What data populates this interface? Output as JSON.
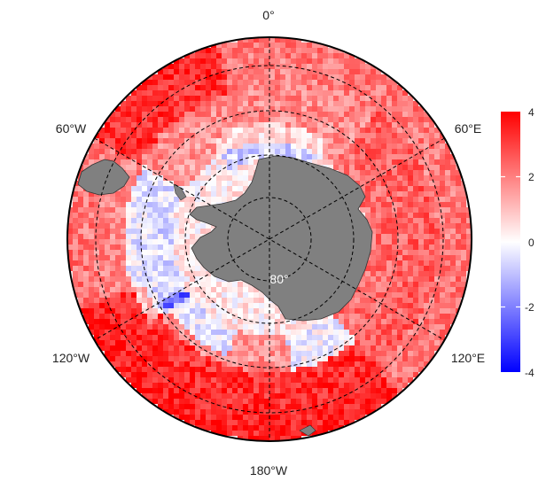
{
  "map": {
    "projection": "south-polar stereographic",
    "longitude_labels": {
      "top": "0°",
      "left_upper": "60°W",
      "right_upper": "60°E",
      "left_lower": "120°W",
      "right_lower": "120°E",
      "bottom": "180°W"
    },
    "latitude_label": "80°",
    "colors": {
      "land": "#808080",
      "negative": "#0000ff",
      "zero": "#ffffff",
      "positive": "#ff0000",
      "graticule": "#000000"
    }
  },
  "colorbar": {
    "ticks": [
      "4",
      "2",
      "0",
      "-2",
      "-4"
    ],
    "min": -4,
    "max": 4
  }
}
